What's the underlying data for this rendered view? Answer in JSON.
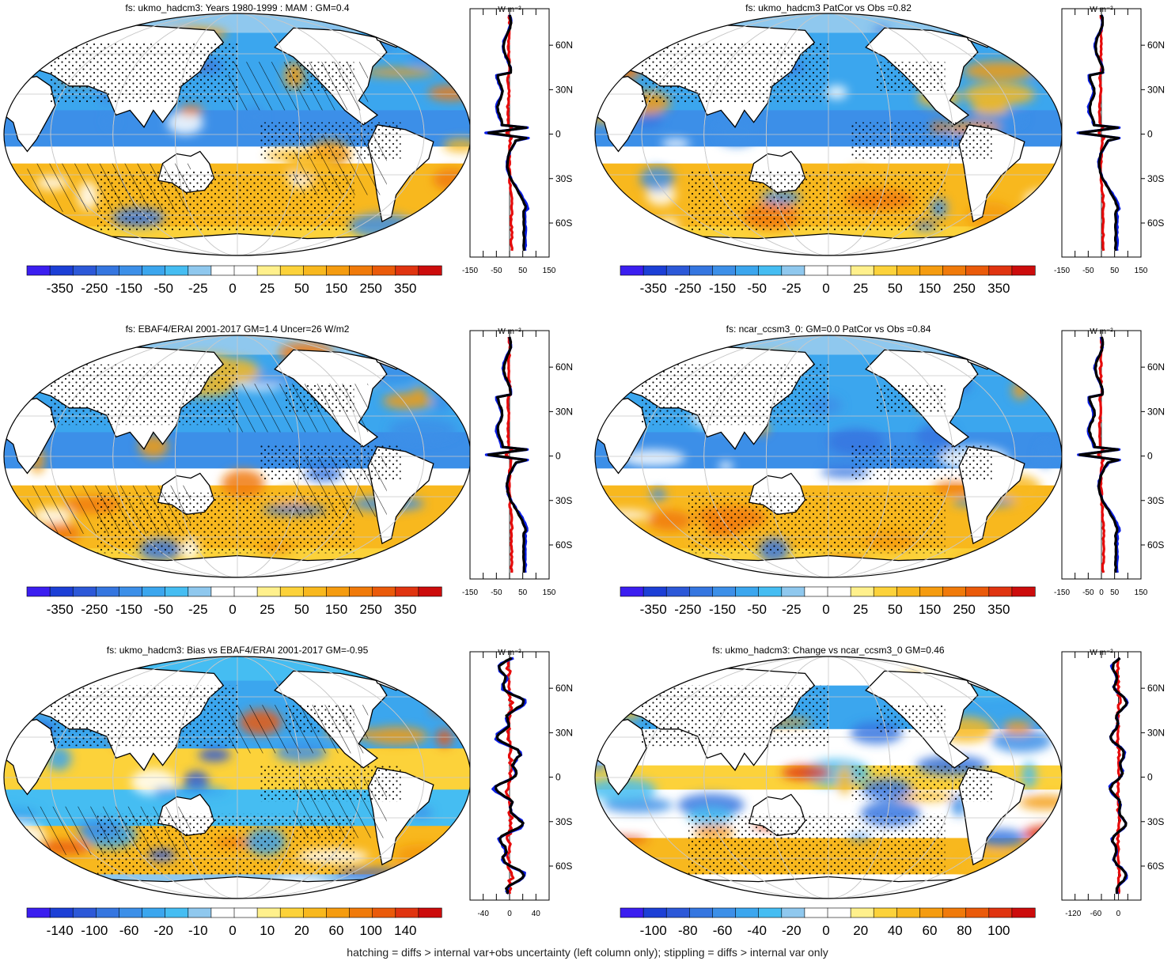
{
  "footer": "hatching = diffs > internal var+obs uncertainty (left column only); stippling = diffs > internal var only",
  "lat_labels": [
    "60N",
    "30N",
    "0",
    "30S",
    "60S"
  ],
  "profile_unit": "W m⁻²",
  "cmap": [
    "#3b1ef0",
    "#1c3fd6",
    "#2c58d8",
    "#3576e0",
    "#3c8fe8",
    "#3ba6ee",
    "#45bdf2",
    "#8fc8ee",
    "#ffffff",
    "#ffffff",
    "#fff08c",
    "#fcd23a",
    "#f8b81e",
    "#f59c10",
    "#f07a0a",
    "#ea5a0a",
    "#e03410",
    "#cc0c0c"
  ],
  "colors": {
    "land": "#ffffff",
    "coast": "#000000",
    "obs_line": "#000000",
    "model_line": "#0a1ee6",
    "diff_line": "#e60a0a",
    "grid": "#c8c8c8"
  },
  "panels": [
    {
      "id": "p1",
      "title": "fs: ukmo_hadcm3: Years 1980-1999 : MAM : GM=0.4",
      "colorbar_labels": [
        "-350",
        "-250",
        "-150",
        "-50",
        "-25",
        "0",
        "25",
        "50",
        "150",
        "250",
        "350"
      ],
      "profile_ticks": [
        "-150",
        "-50",
        "50",
        "150"
      ],
      "profile_range": [
        -150,
        150
      ],
      "pattern": "mean",
      "hatching": true,
      "stippling": true
    },
    {
      "id": "p2",
      "title": "fs: ukmo_hadcm3 PatCor vs Obs =0.82",
      "colorbar_labels": [
        "-350",
        "-250",
        "-150",
        "-50",
        "-25",
        "0",
        "25",
        "50",
        "150",
        "250",
        "350"
      ],
      "profile_ticks": [
        "-150",
        "-50",
        "50",
        "150"
      ],
      "profile_range": [
        -150,
        150
      ],
      "pattern": "mean",
      "hatching": false,
      "stippling": true
    },
    {
      "id": "p3",
      "title": "fs: EBAF4/ERAI 2001-2017 GM=1.4 Uncer=26 W/m2",
      "colorbar_labels": [
        "-350",
        "-250",
        "-150",
        "-50",
        "-25",
        "0",
        "25",
        "50",
        "150",
        "250",
        "350"
      ],
      "profile_ticks": [
        "-150",
        "-50",
        "50",
        "150"
      ],
      "profile_range": [
        -150,
        150
      ],
      "pattern": "mean",
      "hatching": true,
      "stippling": true
    },
    {
      "id": "p4",
      "title": "fs: ncar_ccsm3_0: GM=0.0 PatCor vs Obs =0.84",
      "colorbar_labels": [
        "-350",
        "-250",
        "-150",
        "-50",
        "-25",
        "0",
        "25",
        "50",
        "150",
        "250",
        "350"
      ],
      "profile_ticks": [
        "-150",
        "-50",
        "0",
        "50",
        "150"
      ],
      "profile_range": [
        -150,
        150
      ],
      "pattern": "mean",
      "hatching": false,
      "stippling": true
    },
    {
      "id": "p5",
      "title": "fs: ukmo_hadcm3: Bias vs EBAF4/ERAI 2001-2017 GM=-0.95",
      "colorbar_labels": [
        "-140",
        "-100",
        "-60",
        "-20",
        "-10",
        "0",
        "10",
        "20",
        "60",
        "100",
        "140"
      ],
      "profile_ticks": [
        "-40",
        "0",
        "40"
      ],
      "profile_range": [
        -60,
        60
      ],
      "pattern": "bias",
      "hatching": true,
      "stippling": true
    },
    {
      "id": "p6",
      "title": "fs: ukmo_hadcm3: Change vs ncar_ccsm3_0 GM=0.46",
      "colorbar_labels": [
        "-100",
        "-80",
        "-60",
        "-40",
        "-20",
        "0",
        "20",
        "40",
        "60",
        "80",
        "100"
      ],
      "profile_ticks": [
        "-120",
        "-60",
        "0"
      ],
      "profile_range": [
        -150,
        60
      ],
      "pattern": "change",
      "hatching": false,
      "stippling": true
    }
  ]
}
